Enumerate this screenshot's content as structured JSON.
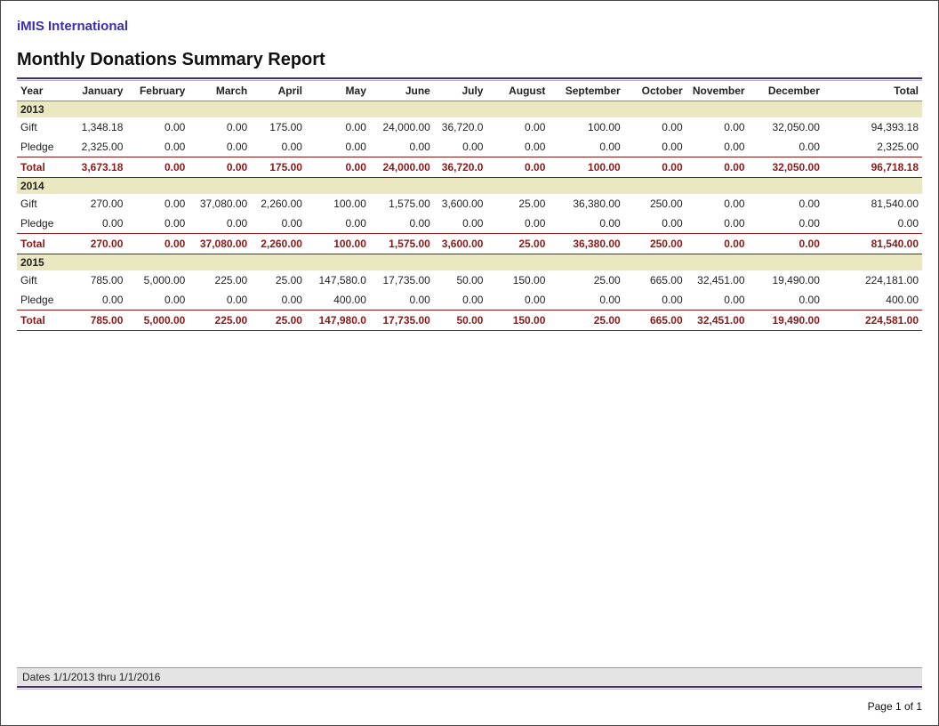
{
  "header": {
    "org": "iMIS International",
    "title": "Monthly Donations Summary Report"
  },
  "colors": {
    "brand": "#3a2fb4",
    "rule_dark": "#3b2e7a",
    "rule_light": "#b7b2d4",
    "year_band": "#e9e8c1",
    "total_text": "#8a1a1a",
    "footer_band": "#e4e4e4",
    "border_gray": "#888888",
    "text": "#222222",
    "background": "#ffffff"
  },
  "columns": [
    "Year",
    "January",
    "February",
    "March",
    "April",
    "May",
    "June",
    "July",
    "August",
    "September",
    "October",
    "November",
    "December",
    "Total"
  ],
  "groups": [
    {
      "year": "2013",
      "rows": [
        {
          "label": "Gift",
          "v": [
            "1,348.18",
            "0.00",
            "0.00",
            "175.00",
            "0.00",
            "24,000.00",
            "36,720.0",
            "0.00",
            "100.00",
            "0.00",
            "0.00",
            "32,050.00",
            "94,393.18"
          ]
        },
        {
          "label": "Pledge",
          "v": [
            "2,325.00",
            "0.00",
            "0.00",
            "0.00",
            "0.00",
            "0.00",
            "0.00",
            "0.00",
            "0.00",
            "0.00",
            "0.00",
            "0.00",
            "2,325.00"
          ]
        }
      ],
      "total": {
        "label": "Total",
        "v": [
          "3,673.18",
          "0.00",
          "0.00",
          "175.00",
          "0.00",
          "24,000.00",
          "36,720.0",
          "0.00",
          "100.00",
          "0.00",
          "0.00",
          "32,050.00",
          "96,718.18"
        ]
      }
    },
    {
      "year": "2014",
      "rows": [
        {
          "label": "Gift",
          "v": [
            "270.00",
            "0.00",
            "37,080.00",
            "2,260.00",
            "100.00",
            "1,575.00",
            "3,600.00",
            "25.00",
            "36,380.00",
            "250.00",
            "0.00",
            "0.00",
            "81,540.00"
          ]
        },
        {
          "label": "Pledge",
          "v": [
            "0.00",
            "0.00",
            "0.00",
            "0.00",
            "0.00",
            "0.00",
            "0.00",
            "0.00",
            "0.00",
            "0.00",
            "0.00",
            "0.00",
            "0.00"
          ]
        }
      ],
      "total": {
        "label": "Total",
        "v": [
          "270.00",
          "0.00",
          "37,080.00",
          "2,260.00",
          "100.00",
          "1,575.00",
          "3,600.00",
          "25.00",
          "36,380.00",
          "250.00",
          "0.00",
          "0.00",
          "81,540.00"
        ]
      }
    },
    {
      "year": "2015",
      "rows": [
        {
          "label": "Gift",
          "v": [
            "785.00",
            "5,000.00",
            "225.00",
            "25.00",
            "147,580.0",
            "17,735.00",
            "50.00",
            "150.00",
            "25.00",
            "665.00",
            "32,451.00",
            "19,490.00",
            "224,181.00"
          ]
        },
        {
          "label": "Pledge",
          "v": [
            "0.00",
            "0.00",
            "0.00",
            "0.00",
            "400.00",
            "0.00",
            "0.00",
            "0.00",
            "0.00",
            "0.00",
            "0.00",
            "0.00",
            "400.00"
          ]
        }
      ],
      "total": {
        "label": "Total",
        "v": [
          "785.00",
          "5,000.00",
          "225.00",
          "25.00",
          "147,980.0",
          "17,735.00",
          "50.00",
          "150.00",
          "25.00",
          "665.00",
          "32,451.00",
          "19,490.00",
          "224,581.00"
        ]
      }
    }
  ],
  "footer": {
    "date_range": "Dates 1/1/2013 thru 1/1/2016",
    "page": "Page 1 of  1"
  }
}
